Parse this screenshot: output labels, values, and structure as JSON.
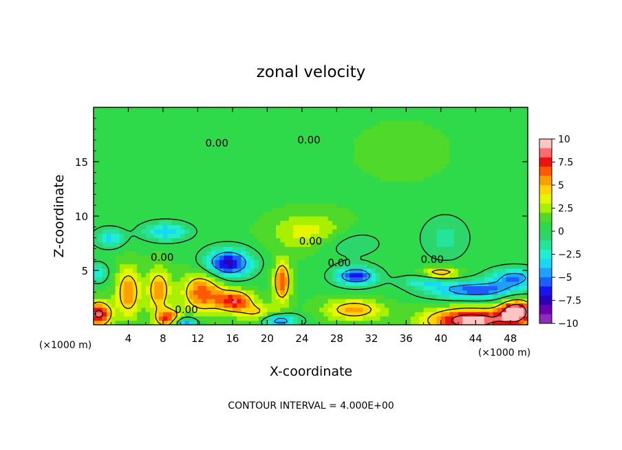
{
  "chart_data": {
    "type": "heatmap",
    "title": "zonal velocity",
    "xlabel": "X-coordinate",
    "ylabel": "Z-coordinate",
    "x_unit": "(×1000 m)",
    "xlim": [
      0,
      50
    ],
    "ylim": [
      0,
      20
    ],
    "x_ticks": [
      4,
      8,
      12,
      16,
      20,
      24,
      28,
      32,
      36,
      40,
      44,
      48
    ],
    "y_ticks": [
      5,
      10,
      15
    ],
    "footer": "CONTOUR INTERVAL = 4.000E+00",
    "contour_labels": [
      {
        "text": "0.00",
        "x": 14.2,
        "z": 16.7
      },
      {
        "text": "0.00",
        "x": 24.8,
        "z": 17.0
      },
      {
        "text": "0.00",
        "x": 7.9,
        "z": 6.2
      },
      {
        "text": "0.00",
        "x": 25.0,
        "z": 7.7
      },
      {
        "text": "0.00",
        "x": 28.3,
        "z": 5.7
      },
      {
        "text": "0.00",
        "x": 10.7,
        "z": 1.4
      },
      {
        "text": "0.00",
        "x": 39.0,
        "z": 6.0
      }
    ],
    "colorbar": {
      "ticks": [
        "10",
        "7.5",
        "5",
        "2.5",
        "0",
        "−2.5",
        "−5",
        "−7.5",
        "−10"
      ],
      "colors": [
        "#ffc4c4",
        "#ff6a6a",
        "#f01010",
        "#ff5a00",
        "#ff9f00",
        "#ffd500",
        "#e6f500",
        "#a8ef00",
        "#4fd92a",
        "#2ed94a",
        "#2cd66a",
        "#25e39a",
        "#1fefd0",
        "#1ad7f2",
        "#1ea0ff",
        "#1d5dff",
        "#1515ee",
        "#2a00b8",
        "#6a00b0",
        "#8e2bb8"
      ]
    },
    "field": {
      "background": 0.8,
      "blobs": [
        {
          "x": 12.5,
          "z": 3.0,
          "sx": 1.6,
          "sz": 1.3,
          "v": 6.0
        },
        {
          "x": 16.2,
          "z": 2.2,
          "sx": 1.4,
          "sz": 0.7,
          "v": 6.8
        },
        {
          "x": 4.0,
          "z": 3.0,
          "sx": 1.0,
          "sz": 1.6,
          "v": 5.0
        },
        {
          "x": 7.5,
          "z": 3.2,
          "sx": 0.9,
          "sz": 1.4,
          "v": 5.0
        },
        {
          "x": 8.6,
          "z": 0.6,
          "sx": 1.0,
          "sz": 0.6,
          "v": 6.5
        },
        {
          "x": 0.6,
          "z": 1.0,
          "sx": 1.0,
          "sz": 0.8,
          "v": 8.0
        },
        {
          "x": 21.7,
          "z": 4.0,
          "sx": 0.7,
          "sz": 1.3,
          "v": 6.0
        },
        {
          "x": 30.0,
          "z": 1.4,
          "sx": 2.4,
          "sz": 0.7,
          "v": 4.5
        },
        {
          "x": 19.0,
          "z": 1.0,
          "sx": 1.5,
          "sz": 0.7,
          "v": 3.5
        },
        {
          "x": 43.5,
          "z": 0.4,
          "sx": 3.5,
          "sz": 0.8,
          "v": 9.0
        },
        {
          "x": 48.7,
          "z": 1.3,
          "sx": 1.3,
          "sz": 0.8,
          "v": 9.0
        },
        {
          "x": 40.0,
          "z": 4.8,
          "sx": 1.4,
          "sz": 0.35,
          "v": 5.0
        },
        {
          "x": 25.0,
          "z": 8.5,
          "sx": 3.0,
          "sz": 1.2,
          "v": 3.0
        },
        {
          "x": 15.5,
          "z": 5.7,
          "sx": 1.9,
          "sz": 0.9,
          "v": -8.5
        },
        {
          "x": 30.2,
          "z": 4.5,
          "sx": 1.7,
          "sz": 0.6,
          "v": -7.5
        },
        {
          "x": 44.0,
          "z": 3.2,
          "sx": 3.8,
          "sz": 0.6,
          "v": -6.5
        },
        {
          "x": 48.5,
          "z": 4.4,
          "sx": 2.0,
          "sz": 0.6,
          "v": -5.5
        },
        {
          "x": 21.3,
          "z": 0.4,
          "sx": 1.6,
          "sz": 0.4,
          "v": -6.5
        },
        {
          "x": 10.5,
          "z": 0.2,
          "sx": 1.0,
          "sz": 0.35,
          "v": -6.0
        },
        {
          "x": 8.3,
          "z": 8.6,
          "sx": 1.9,
          "sz": 0.6,
          "v": -4.8
        },
        {
          "x": 1.8,
          "z": 8.0,
          "sx": 1.2,
          "sz": 0.6,
          "v": -4.2
        },
        {
          "x": 0.5,
          "z": 4.8,
          "sx": 0.8,
          "sz": 0.6,
          "v": -3.5
        },
        {
          "x": 38.0,
          "z": 4.0,
          "sx": 2.0,
          "sz": 0.4,
          "v": -3.0
        },
        {
          "x": 40.5,
          "z": 8.0,
          "sx": 2.0,
          "sz": 1.5,
          "v": -2.2
        },
        {
          "x": 29.0,
          "z": 7.5,
          "sx": 3.0,
          "sz": 1.0,
          "v": -2.0
        },
        {
          "x": 35.5,
          "z": 16.0,
          "sx": 3.0,
          "sz": 1.5,
          "v": 1.2
        }
      ]
    }
  }
}
